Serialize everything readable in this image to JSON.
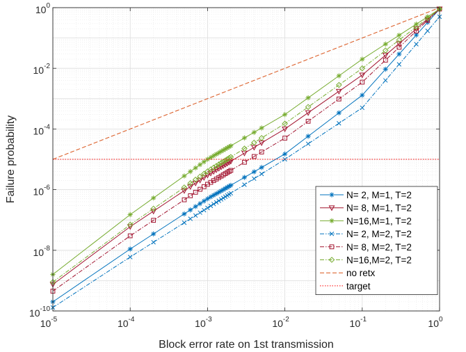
{
  "chart_data": {
    "type": "line",
    "xscale": "log",
    "yscale": "log",
    "xlim": [
      1e-05,
      1
    ],
    "ylim": [
      1e-10,
      1
    ],
    "xlabel": "Block error rate on 1st transmission",
    "ylabel": "Failure probability",
    "grid": true,
    "minor_grid": true,
    "legend_position": "bottom-right",
    "x_ticks": [
      {
        "value": 1e-05,
        "base": "10",
        "exp": "-5"
      },
      {
        "value": 0.0001,
        "base": "10",
        "exp": "-4"
      },
      {
        "value": 0.001,
        "base": "10",
        "exp": "-3"
      },
      {
        "value": 0.01,
        "base": "10",
        "exp": "-2"
      },
      {
        "value": 0.1,
        "base": "10",
        "exp": "-1"
      },
      {
        "value": 1,
        "base": "10",
        "exp": "0"
      }
    ],
    "y_ticks": [
      {
        "value": 1e-10,
        "base": "10",
        "exp": "-10"
      },
      {
        "value": 1e-08,
        "base": "10",
        "exp": "-8"
      },
      {
        "value": 1e-06,
        "base": "10",
        "exp": "-6"
      },
      {
        "value": 0.0001,
        "base": "10",
        "exp": "-4"
      },
      {
        "value": 0.01,
        "base": "10",
        "exp": "-2"
      },
      {
        "value": 1,
        "base": "10",
        "exp": "0"
      }
    ],
    "dense_x": [
      1e-05,
      0.0001,
      0.0002,
      0.0005,
      0.0006,
      0.0007,
      0.0008,
      0.0009,
      0.001,
      0.0011,
      0.0012,
      0.0013,
      0.0014,
      0.0015,
      0.0016,
      0.0017,
      0.0018,
      0.0019,
      0.002,
      0.003,
      0.004,
      0.005,
      0.01,
      0.02,
      0.05,
      0.1,
      0.2,
      0.3,
      0.5,
      0.7,
      1
    ],
    "sparse_x": [
      1e-05,
      0.0001,
      0.0002,
      0.0005,
      0.001,
      0.002,
      0.005,
      0.01,
      0.02,
      0.05,
      0.1,
      0.2,
      0.3,
      0.5,
      0.7,
      1
    ],
    "series": [
      {
        "name": "N= 2, M=1, T=2",
        "color": "#0072BD",
        "dash": "solid",
        "marker": "asterisk",
        "points": "dense",
        "x_anchor": [
          1e-05,
          0.0001,
          0.001,
          0.01,
          0.1,
          1
        ],
        "y_anchor": [
          2e-10,
          1.1e-08,
          5e-07,
          1.5e-05,
          0.0013,
          0.9
        ]
      },
      {
        "name": "N= 8, M=1, T=2",
        "color": "#A2142F",
        "dash": "solid",
        "marker": "triangle-down",
        "points": "dense",
        "x_anchor": [
          1e-05,
          0.0001,
          0.001,
          0.01,
          0.1,
          1
        ],
        "y_anchor": [
          7.5e-10,
          6e-08,
          3e-06,
          0.0001,
          0.006,
          0.9
        ]
      },
      {
        "name": "N=16,M=1, T=2",
        "color": "#77AC30",
        "dash": "solid",
        "marker": "star",
        "points": "dense",
        "x_anchor": [
          1e-05,
          0.0001,
          0.001,
          0.01,
          0.1,
          1
        ],
        "y_anchor": [
          1.6e-09,
          1.5e-07,
          1e-05,
          0.0003,
          0.02,
          0.9
        ]
      },
      {
        "name": "N= 2, M=2, T=2",
        "color": "#0072BD",
        "dash": "dashdot",
        "marker": "x",
        "points": "dense",
        "x_anchor": [
          1e-05,
          0.0001,
          0.001,
          0.01,
          0.1,
          1
        ],
        "y_anchor": [
          1.3e-10,
          6e-09,
          2.5e-07,
          1e-05,
          0.0005,
          0.5
        ]
      },
      {
        "name": "N= 8, M=2, T=2",
        "color": "#A2142F",
        "dash": "dashdot",
        "marker": "square",
        "points": "dense",
        "x_anchor": [
          1e-05,
          0.0001,
          0.001,
          0.01,
          0.1,
          1
        ],
        "y_anchor": [
          4.5e-10,
          3e-08,
          1.5e-06,
          5e-05,
          0.0035,
          0.9
        ]
      },
      {
        "name": "N=16,M=2, T=2",
        "color": "#77AC30",
        "dash": "dashdot",
        "marker": "diamond",
        "points": "dense",
        "x_anchor": [
          1e-05,
          0.0001,
          0.001,
          0.01,
          0.1,
          1
        ],
        "y_anchor": [
          9e-10,
          7e-08,
          4e-06,
          0.00015,
          0.01,
          0.9
        ]
      },
      {
        "name": "no retx",
        "color": "#D95319",
        "dash": "dashed",
        "marker": "none",
        "points": "dense",
        "x_anchor": [
          1e-05,
          1
        ],
        "y_anchor": [
          1e-05,
          1
        ]
      },
      {
        "name": "target",
        "color": "#FF0000",
        "dash": "dotted",
        "marker": "none",
        "points": "dense",
        "x_anchor": [
          1e-05,
          1
        ],
        "y_anchor": [
          1e-05,
          1e-05
        ]
      }
    ]
  }
}
